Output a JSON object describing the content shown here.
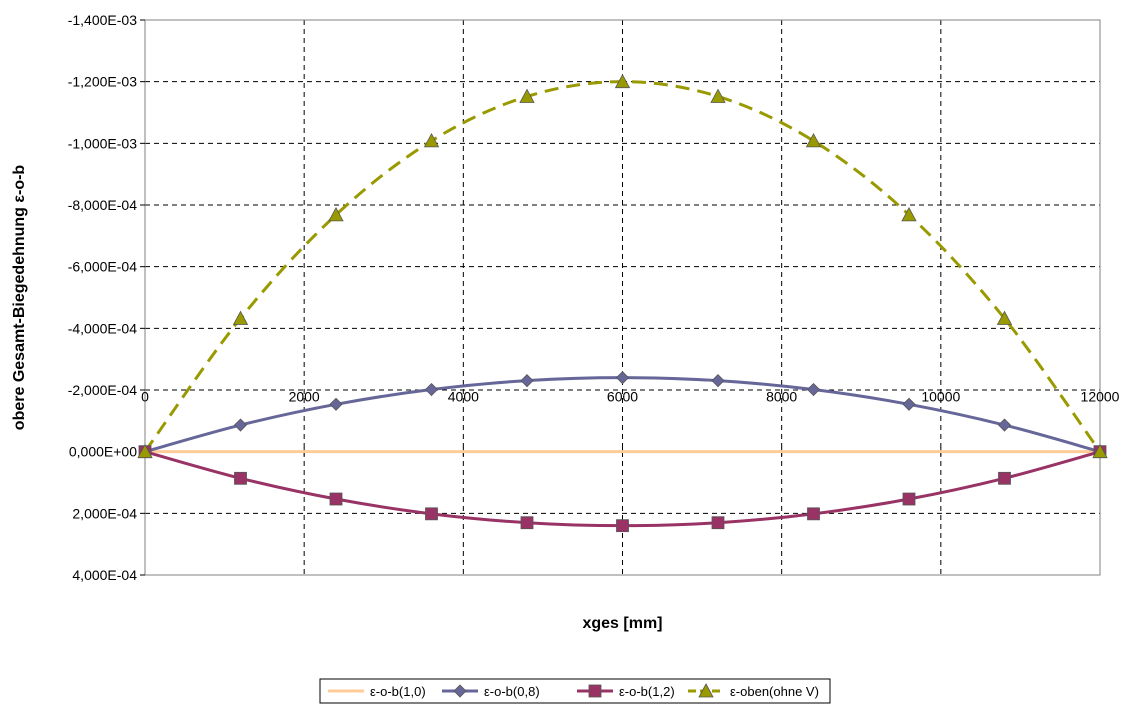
{
  "chart_data": {
    "type": "line",
    "xlabel": "xges   [mm]",
    "ylabel": "obere Gesamt-Biegedehnung   ε-o-b",
    "xlim": [
      0,
      12000
    ],
    "ylim": [
      -0.0014,
      0.0004
    ],
    "y_inverted": true,
    "grid": true,
    "legend_position": "bottom",
    "x_ticks": [
      0,
      2000,
      4000,
      6000,
      8000,
      10000,
      12000
    ],
    "x_tick_labels": [
      "0",
      "2000",
      "4000",
      "6000",
      "8000",
      "10000",
      "12000"
    ],
    "y_ticks": [
      -0.0014,
      -0.0012,
      -0.001,
      -0.0008,
      -0.0006,
      -0.0004,
      -0.0002,
      0,
      0.0002,
      0.0004
    ],
    "y_tick_labels": [
      "-1,400E-03",
      "-1,200E-03",
      "-1,000E-03",
      "-8,000E-04",
      "-6,000E-04",
      "-4,000E-04",
      "-2,000E-04",
      "0,000E+00",
      "2,000E-04",
      "4,000E-04"
    ],
    "x": [
      0,
      1200,
      2400,
      3600,
      4800,
      6000,
      7200,
      8400,
      9600,
      10800,
      12000
    ],
    "series": [
      {
        "name": "ε-o-b(1,0)",
        "color": "#FFCC99",
        "marker": "none",
        "dash": "solid",
        "values": [
          0,
          0,
          0,
          0,
          0,
          0,
          0,
          0,
          0,
          0,
          0
        ]
      },
      {
        "name": "ε-o-b(0,8)",
        "color": "#666699",
        "marker": "diamond",
        "dash": "solid",
        "values": [
          0,
          -8.64e-05,
          -0.0001536,
          -0.0002016,
          -0.0002304,
          -0.00024,
          -0.0002304,
          -0.0002016,
          -0.0001536,
          -8.64e-05,
          0
        ]
      },
      {
        "name": "ε-o-b(1,2)",
        "color": "#993366",
        "marker": "square",
        "dash": "solid",
        "values": [
          0,
          8.64e-05,
          0.0001536,
          0.0002016,
          0.0002304,
          0.00024,
          0.0002304,
          0.0002016,
          0.0001536,
          8.64e-05,
          0
        ]
      },
      {
        "name": "ε-oben(ohne V)",
        "color": "#999900",
        "marker": "triangle",
        "dash": "dashed",
        "values": [
          0,
          -0.000432,
          -0.000768,
          -0.001008,
          -0.001152,
          -0.0012,
          -0.001152,
          -0.001008,
          -0.000768,
          -0.000432,
          0
        ]
      }
    ]
  }
}
